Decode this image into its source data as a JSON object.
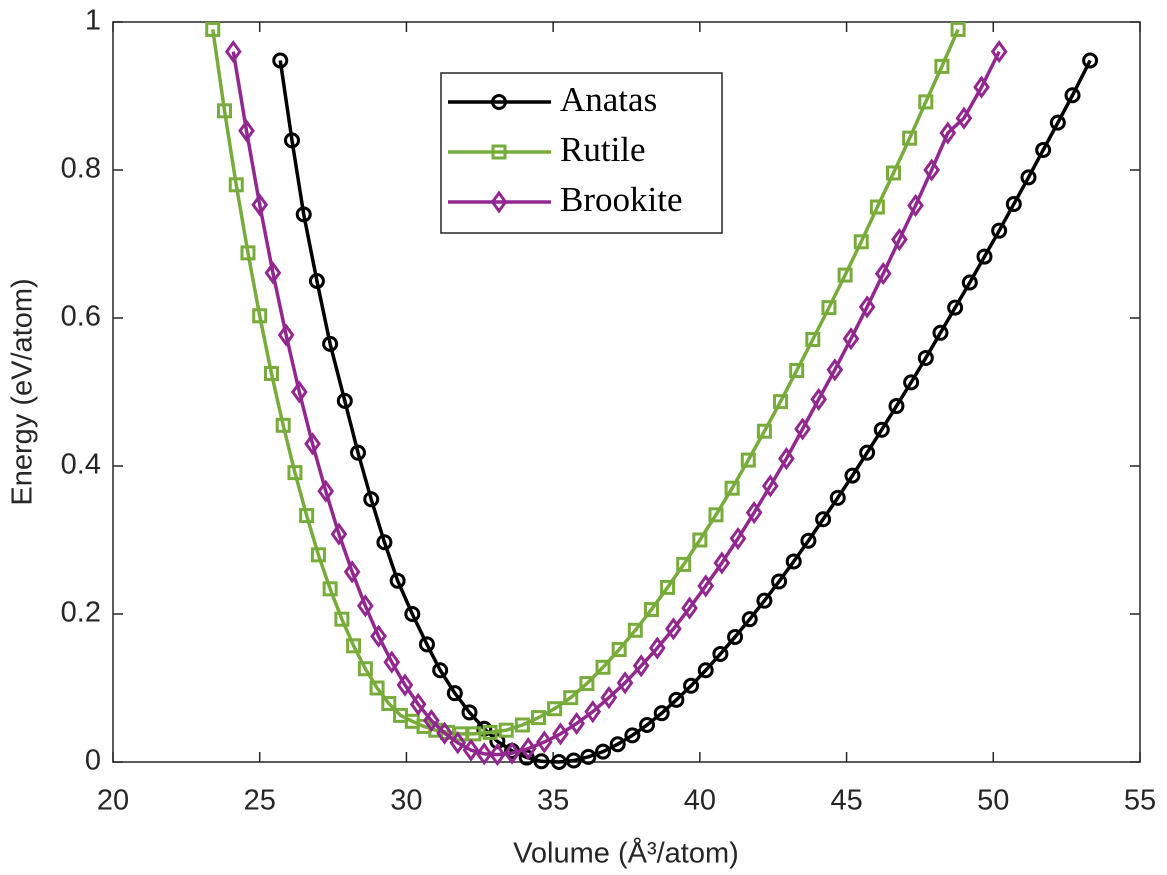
{
  "chart_data": {
    "type": "line",
    "xlabel": "Volume (Å³/atom)",
    "ylabel": "Energy (eV/atom)",
    "xlim": [
      20,
      55
    ],
    "xticks": [
      20,
      25,
      30,
      35,
      40,
      45,
      50,
      55
    ],
    "ylim": [
      0,
      1
    ],
    "yticks": [
      0,
      0.2,
      0.4,
      0.6,
      0.8,
      1
    ],
    "legend_loc": "top-center",
    "series": [
      {
        "name": "Anatas",
        "color": "#000000",
        "marker": "circle",
        "x": [
          25.7,
          26.1,
          26.5,
          26.95,
          27.4,
          27.9,
          28.35,
          28.8,
          29.25,
          29.7,
          30.2,
          30.7,
          31.15,
          31.65,
          32.15,
          32.65,
          33.1,
          33.6,
          34.1,
          34.6,
          35.2,
          35.7,
          36.2,
          36.7,
          37.2,
          37.7,
          38.2,
          38.7,
          39.2,
          39.7,
          40.2,
          40.7,
          41.2,
          41.7,
          42.2,
          42.7,
          43.2,
          43.7,
          44.2,
          44.7,
          45.2,
          45.7,
          46.2,
          46.7,
          47.2,
          47.7,
          48.2,
          48.7,
          49.2,
          49.7,
          50.2,
          50.7,
          51.2,
          51.7,
          52.2,
          52.7,
          53.3
        ],
        "values": [
          0.948,
          0.84,
          0.74,
          0.65,
          0.565,
          0.488,
          0.418,
          0.355,
          0.297,
          0.245,
          0.2,
          0.159,
          0.124,
          0.093,
          0.067,
          0.045,
          0.028,
          0.015,
          0.006,
          0.001,
          0,
          0.002,
          0.007,
          0.014,
          0.024,
          0.036,
          0.05,
          0.066,
          0.084,
          0.103,
          0.124,
          0.146,
          0.169,
          0.193,
          0.218,
          0.244,
          0.271,
          0.299,
          0.328,
          0.357,
          0.387,
          0.418,
          0.449,
          0.481,
          0.513,
          0.546,
          0.58,
          0.614,
          0.648,
          0.683,
          0.718,
          0.754,
          0.79,
          0.827,
          0.864,
          0.901,
          0.948
        ]
      },
      {
        "name": "Rutile",
        "color": "#77ac3b",
        "marker": "square",
        "x": [
          23.4,
          23.8,
          24.2,
          24.6,
          25.0,
          25.4,
          25.8,
          26.2,
          26.6,
          27.0,
          27.4,
          27.8,
          28.2,
          28.6,
          29.0,
          29.4,
          29.8,
          30.2,
          30.6,
          31.0,
          31.4,
          31.85,
          32.3,
          32.85,
          33.4,
          33.95,
          34.5,
          35.05,
          35.6,
          36.15,
          36.7,
          37.25,
          37.8,
          38.35,
          38.9,
          39.45,
          40.0,
          40.55,
          41.1,
          41.65,
          42.2,
          42.75,
          43.3,
          43.85,
          44.4,
          44.95,
          45.5,
          46.05,
          46.6,
          47.15,
          47.7,
          48.25,
          48.8
        ],
        "values": [
          0.99,
          0.88,
          0.78,
          0.688,
          0.603,
          0.525,
          0.455,
          0.391,
          0.333,
          0.28,
          0.234,
          0.193,
          0.157,
          0.126,
          0.1,
          0.079,
          0.063,
          0.055,
          0.048,
          0.043,
          0.04,
          0.038,
          0.038,
          0.04,
          0.043,
          0.05,
          0.06,
          0.072,
          0.087,
          0.106,
          0.128,
          0.152,
          0.178,
          0.206,
          0.236,
          0.267,
          0.3,
          0.334,
          0.37,
          0.408,
          0.447,
          0.487,
          0.529,
          0.571,
          0.614,
          0.658,
          0.703,
          0.75,
          0.796,
          0.843,
          0.892,
          0.94,
          0.99
        ]
      },
      {
        "name": "Brookite",
        "color": "#92278f",
        "marker": "diamond",
        "x": [
          24.1,
          24.55,
          25.0,
          25.45,
          25.9,
          26.35,
          26.8,
          27.25,
          27.7,
          28.15,
          28.6,
          29.05,
          29.5,
          29.95,
          30.4,
          30.85,
          31.3,
          31.75,
          32.2,
          32.65,
          33.1,
          33.6,
          34.15,
          34.7,
          35.25,
          35.8,
          36.35,
          36.9,
          37.45,
          38.0,
          38.55,
          39.1,
          39.65,
          40.2,
          40.75,
          41.3,
          41.85,
          42.4,
          42.95,
          43.5,
          44.05,
          44.6,
          45.15,
          45.7,
          46.25,
          46.8,
          47.35,
          47.9,
          48.45,
          49.0,
          49.6,
          50.2
        ],
        "values": [
          0.96,
          0.853,
          0.753,
          0.661,
          0.577,
          0.5,
          0.43,
          0.366,
          0.308,
          0.257,
          0.211,
          0.17,
          0.135,
          0.104,
          0.078,
          0.056,
          0.039,
          0.026,
          0.016,
          0.011,
          0.01,
          0.012,
          0.018,
          0.027,
          0.038,
          0.052,
          0.068,
          0.087,
          0.107,
          0.13,
          0.154,
          0.18,
          0.208,
          0.238,
          0.269,
          0.302,
          0.337,
          0.373,
          0.41,
          0.45,
          0.49,
          0.53,
          0.572,
          0.615,
          0.66,
          0.706,
          0.752,
          0.8,
          0.85,
          0.87,
          0.912,
          0.96
        ]
      }
    ]
  }
}
